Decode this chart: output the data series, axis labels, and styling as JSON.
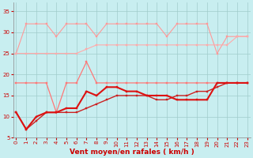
{
  "x": [
    0,
    1,
    2,
    3,
    4,
    5,
    6,
    7,
    8,
    9,
    10,
    11,
    12,
    13,
    14,
    15,
    16,
    17,
    18,
    19,
    20,
    21,
    22,
    23
  ],
  "series": [
    {
      "name": "rafales_top",
      "color": "#ff9999",
      "linewidth": 0.8,
      "markersize": 1.8,
      "marker": "s",
      "zorder": 2,
      "values": [
        25,
        32,
        32,
        32,
        29,
        32,
        32,
        32,
        29,
        32,
        32,
        32,
        32,
        32,
        32,
        29,
        32,
        32,
        32,
        32,
        25,
        29,
        29,
        29
      ]
    },
    {
      "name": "rafales_mid",
      "color": "#ffaaaa",
      "linewidth": 0.8,
      "markersize": 1.8,
      "marker": "s",
      "zorder": 2,
      "values": [
        25,
        25,
        25,
        25,
        25,
        25,
        25,
        26,
        27,
        27,
        27,
        27,
        27,
        27,
        27,
        27,
        27,
        27,
        27,
        27,
        27,
        27,
        29,
        29
      ]
    },
    {
      "name": "vent_med_light",
      "color": "#ff7777",
      "linewidth": 0.9,
      "markersize": 1.8,
      "marker": "s",
      "zorder": 3,
      "values": [
        18,
        18,
        18,
        18,
        11,
        18,
        18,
        23,
        18,
        18,
        18,
        18,
        18,
        18,
        18,
        18,
        18,
        18,
        18,
        18,
        18,
        18,
        18,
        18
      ]
    },
    {
      "name": "vent_moyen_thick",
      "color": "#dd1111",
      "linewidth": 1.5,
      "markersize": 1.8,
      "marker": "s",
      "zorder": 4,
      "values": [
        11,
        7,
        10,
        11,
        11,
        12,
        12,
        16,
        15,
        17,
        17,
        16,
        16,
        15,
        15,
        15,
        14,
        14,
        14,
        14,
        18,
        18,
        18,
        18
      ]
    },
    {
      "name": "vent_min",
      "color": "#cc2222",
      "linewidth": 1.0,
      "markersize": 1.8,
      "marker": "s",
      "zorder": 3,
      "values": [
        11,
        7,
        9,
        11,
        11,
        11,
        11,
        12,
        13,
        14,
        15,
        15,
        15,
        15,
        14,
        14,
        15,
        15,
        16,
        16,
        17,
        18,
        18,
        18
      ]
    }
  ],
  "xlim": [
    -0.3,
    23.3
  ],
  "ylim": [
    5,
    37
  ],
  "yticks": [
    5,
    10,
    15,
    20,
    25,
    30,
    35
  ],
  "xticks": [
    0,
    1,
    2,
    3,
    4,
    5,
    6,
    7,
    8,
    9,
    10,
    11,
    12,
    13,
    14,
    15,
    16,
    17,
    18,
    19,
    20,
    21,
    22,
    23
  ],
  "xlabel": "Vent moyen/en rafales ( km/h )",
  "background_color": "#c8eef0",
  "grid_color": "#a0cccc",
  "tick_label_fontsize": 5.0,
  "xlabel_fontsize": 6.5,
  "xlabel_color": "#cc0000",
  "tick_label_color": "#cc0000",
  "spine_color": "#888888"
}
